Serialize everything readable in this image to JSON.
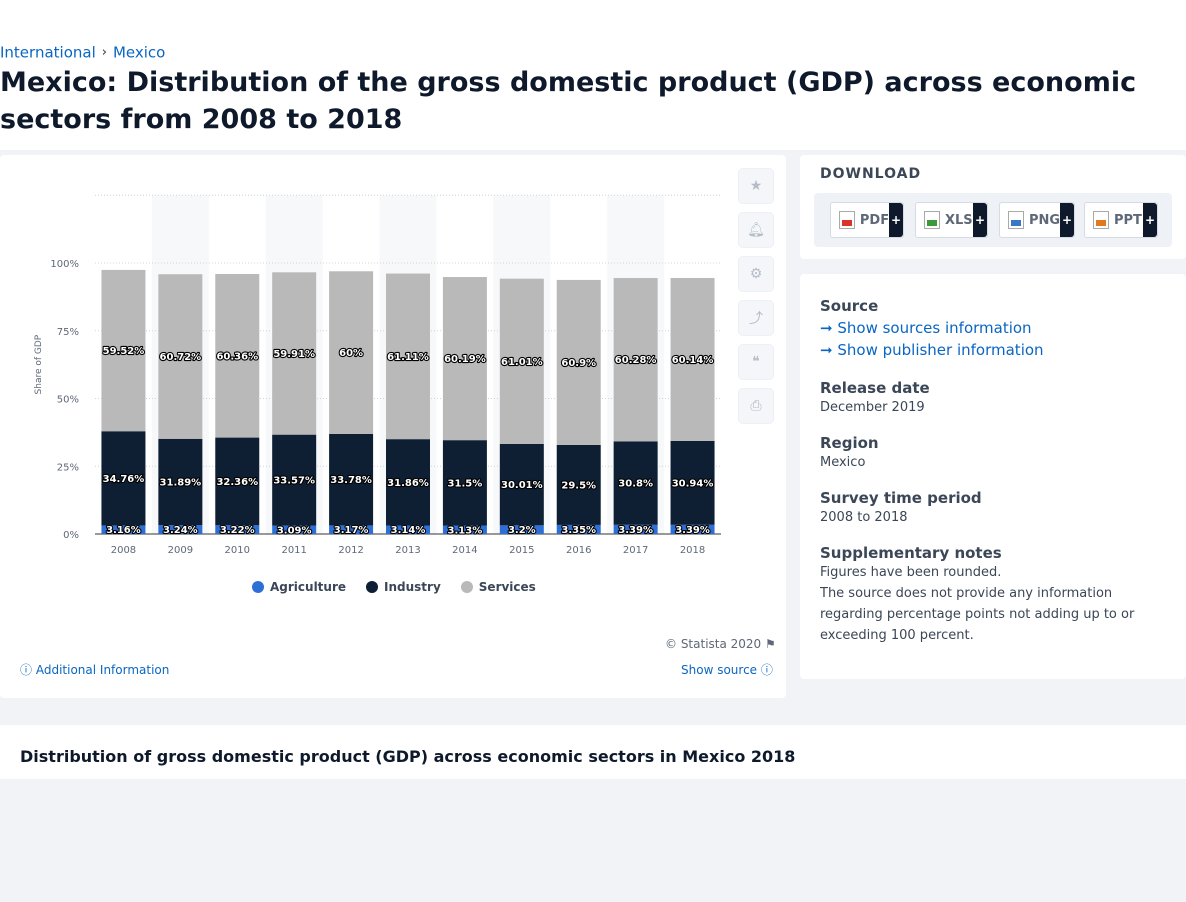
{
  "breadcrumb": {
    "items": [
      "International",
      "Mexico"
    ],
    "separator": "›"
  },
  "page_title": "Mexico: Distribution of the gross domestic product (GDP) across economic sectors from 2008 to 2018",
  "download": {
    "title": "DOWNLOAD",
    "buttons": [
      {
        "label": "PDF",
        "icon": "pdf-file-icon"
      },
      {
        "label": "XLS",
        "icon": "xls-file-icon"
      },
      {
        "label": "PNG",
        "icon": "png-file-icon"
      },
      {
        "label": "PPT",
        "icon": "ppt-file-icon"
      }
    ],
    "plus": "+"
  },
  "info": {
    "source_heading": "Source",
    "show_sources": "Show sources information",
    "show_publisher": "Show publisher information",
    "release_heading": "Release date",
    "release_value": "December 2019",
    "region_heading": "Region",
    "region_value": "Mexico",
    "survey_heading": "Survey time period",
    "survey_value": "2008 to 2018",
    "notes_heading": "Supplementary notes",
    "notes_line1": "Figures have been rounded.",
    "notes_line2": "The source does not provide any information regarding percentage points not adding up to or exceeding 100 percent."
  },
  "footer": {
    "copyright": "© Statista 2020",
    "additional_info": "Additional Information",
    "show_source": "Show source"
  },
  "bottom_title": "Distribution of gross domestic product (GDP) across economic sectors in Mexico 2018",
  "colors": {
    "agriculture": "#2e6fd6",
    "industry": "#0e1f33",
    "services": "#b9b9b9",
    "link": "#0a66c2"
  },
  "chart_data": {
    "type": "bar",
    "stacked": true,
    "categories": [
      "2008",
      "2009",
      "2010",
      "2011",
      "2012",
      "2013",
      "2014",
      "2015",
      "2016",
      "2017",
      "2018"
    ],
    "series": [
      {
        "name": "Agriculture",
        "values": [
          3.16,
          3.24,
          3.22,
          3.09,
          3.17,
          3.14,
          3.13,
          3.2,
          3.35,
          3.39,
          3.39
        ],
        "labels": [
          "3.16%",
          "3.24%",
          "3.22%",
          "3.09%",
          "3.17%",
          "3.14%",
          "3.13%",
          "3.2%",
          "3.35%",
          "3.39%",
          "3.39%"
        ]
      },
      {
        "name": "Industry",
        "values": [
          34.76,
          31.89,
          32.36,
          33.57,
          33.78,
          31.86,
          31.5,
          30.01,
          29.5,
          30.8,
          30.94
        ],
        "labels": [
          "34.76%",
          "31.89%",
          "32.36%",
          "33.57%",
          "33.78%",
          "31.86%",
          "31.5%",
          "30.01%",
          "29.5%",
          "30.8%",
          "30.94%"
        ]
      },
      {
        "name": "Services",
        "values": [
          59.52,
          60.72,
          60.36,
          59.91,
          60,
          61.11,
          60.19,
          61.01,
          60.9,
          60.28,
          60.14
        ],
        "labels": [
          "59.52%",
          "60.72%",
          "60.36%",
          "59.91%",
          "60%",
          "61.11%",
          "60.19%",
          "61.01%",
          "60.9%",
          "60.28%",
          "60.14%"
        ]
      }
    ],
    "ylabel": "Share of GDP",
    "yticks": [
      "0%",
      "25%",
      "50%",
      "75%",
      "100%"
    ],
    "ylim": [
      0,
      125
    ],
    "grid": true,
    "legend_position": "bottom"
  }
}
